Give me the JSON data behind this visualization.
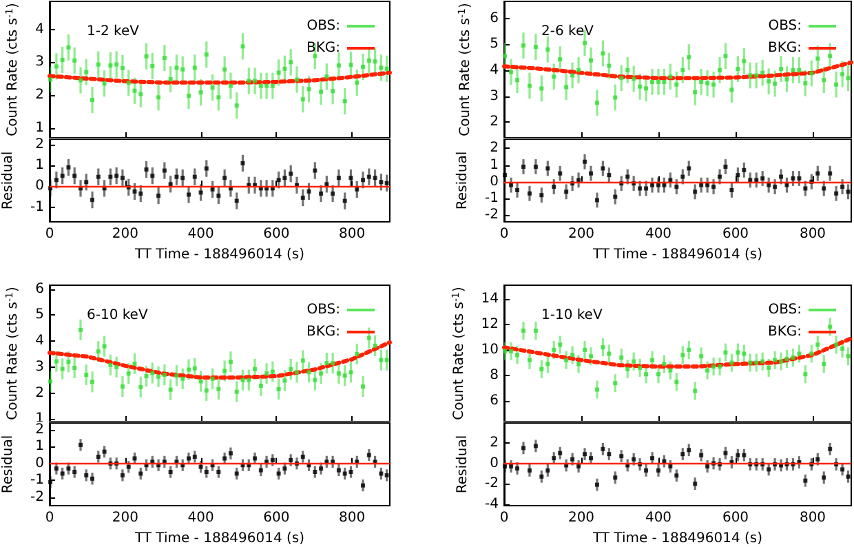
{
  "chart_data": [
    {
      "type": "scatter",
      "title": "1-2 keV",
      "ylabel": "Count Rate (cts s$^{-1}$)",
      "tick_labels": "y",
      "legend": "top right",
      "marker": "square",
      "xlim": [
        0,
        900
      ],
      "xticks": [
        0,
        200,
        400,
        600,
        800
      ],
      "ylim": [
        0.7,
        4.85
      ],
      "yticks": [
        1,
        2,
        3,
        4
      ],
      "x": [
        2,
        18,
        34,
        50,
        66,
        82,
        97,
        113,
        129,
        145,
        161,
        177,
        193,
        209,
        225,
        241,
        256,
        272,
        288,
        304,
        320,
        336,
        352,
        368,
        384,
        400,
        415,
        431,
        447,
        463,
        479,
        495,
        511,
        527,
        543,
        559,
        574,
        590,
        606,
        622,
        638,
        654,
        670,
        686,
        702,
        718,
        733,
        749,
        765,
        781,
        797,
        813,
        829,
        845,
        861,
        877,
        892
      ],
      "series": [
        {
          "name": "OBS:",
          "color": "#33dd33",
          "values": [
            2.47,
            2.87,
            3.07,
            3.45,
            3.05,
            2.45,
            2.7,
            1.85,
            2.93,
            2.35,
            2.9,
            2.93,
            2.82,
            2.37,
            2.13,
            2.03,
            3.18,
            2.88,
            1.93,
            3.13,
            2.48,
            2.83,
            2.78,
            1.98,
            2.83,
            2.08,
            3.23,
            2.23,
            1.93,
            2.78,
            2.28,
            1.68,
            3.48,
            2.43,
            2.43,
            2.28,
            2.28,
            2.28,
            2.68,
            2.8,
            3.0,
            2.47,
            1.87,
            2.18,
            3.19,
            2.1,
            2.56,
            2.12,
            2.9,
            1.81,
            2.92,
            2.38,
            2.86,
            3.05,
            3.02,
            2.83,
            2.8
          ],
          "errors": [
            0.4,
            0.4,
            0.4,
            0.4,
            0.4,
            0.4,
            0.4,
            0.4,
            0.4,
            0.4,
            0.4,
            0.4,
            0.4,
            0.4,
            0.4,
            0.4,
            0.4,
            0.4,
            0.4,
            0.4,
            0.4,
            0.4,
            0.4,
            0.4,
            0.4,
            0.4,
            0.4,
            0.4,
            0.4,
            0.4,
            0.4,
            0.4,
            0.4,
            0.4,
            0.4,
            0.4,
            0.4,
            0.4,
            0.4,
            0.4,
            0.4,
            0.4,
            0.4,
            0.4,
            0.4,
            0.4,
            0.4,
            0.4,
            0.4,
            0.4,
            0.4,
            0.4,
            0.4,
            0.4,
            0.4,
            0.4,
            0.4
          ]
        },
        {
          "name": "BKG:",
          "type": "line",
          "color": "#ff2200",
          "line_style": "dotted",
          "marker": "none",
          "x": [
            0,
            100,
            200,
            300,
            400,
            500,
            600,
            700,
            800,
            900
          ],
          "values": [
            2.58,
            2.5,
            2.42,
            2.38,
            2.38,
            2.38,
            2.4,
            2.45,
            2.55,
            2.68
          ]
        }
      ]
    },
    {
      "type": "scatter",
      "xlabel": "TT Time - 188496014 (s)",
      "ylabel": "Residual",
      "marker": "square",
      "xlim": [
        0,
        900
      ],
      "xticks": [
        0,
        200,
        400,
        600,
        800
      ],
      "ylim": [
        -1.7,
        2.25
      ],
      "yticks": [
        -1,
        0,
        1,
        2
      ],
      "ref_lines": [
        {
          "axis": "y",
          "value": 0,
          "color": "#ff2200"
        }
      ],
      "x": [
        2,
        18,
        34,
        50,
        66,
        82,
        97,
        113,
        129,
        145,
        161,
        177,
        193,
        209,
        225,
        241,
        256,
        272,
        288,
        304,
        320,
        336,
        352,
        368,
        384,
        400,
        415,
        431,
        447,
        463,
        479,
        495,
        511,
        527,
        543,
        559,
        574,
        590,
        606,
        622,
        638,
        654,
        670,
        686,
        702,
        718,
        733,
        749,
        765,
        781,
        797,
        813,
        829,
        845,
        861,
        877,
        892
      ],
      "series": [
        {
          "color": "#000000",
          "values": [
            -0.1,
            0.3,
            0.5,
            0.9,
            0.5,
            -0.1,
            0.2,
            -0.65,
            0.45,
            -0.1,
            0.45,
            0.5,
            0.4,
            -0.05,
            -0.25,
            -0.35,
            0.8,
            0.5,
            -0.45,
            0.75,
            0.1,
            0.45,
            0.4,
            -0.4,
            0.45,
            -0.3,
            0.85,
            -0.15,
            -0.45,
            0.4,
            -0.1,
            -0.7,
            1.1,
            0.05,
            0.05,
            -0.1,
            -0.1,
            -0.1,
            0.3,
            0.4,
            0.6,
            0.05,
            -0.55,
            -0.25,
            0.75,
            -0.35,
            0.1,
            -0.35,
            0.4,
            -0.7,
            0.4,
            -0.15,
            0.3,
            0.45,
            0.4,
            0.2,
            0.15
          ],
          "errors": [
            0.4,
            0.4,
            0.4,
            0.4,
            0.4,
            0.4,
            0.4,
            0.4,
            0.4,
            0.4,
            0.4,
            0.4,
            0.4,
            0.4,
            0.4,
            0.4,
            0.4,
            0.4,
            0.4,
            0.4,
            0.4,
            0.4,
            0.4,
            0.4,
            0.4,
            0.4,
            0.4,
            0.4,
            0.4,
            0.4,
            0.4,
            0.4,
            0.4,
            0.4,
            0.4,
            0.4,
            0.4,
            0.4,
            0.4,
            0.4,
            0.4,
            0.4,
            0.4,
            0.4,
            0.4,
            0.4,
            0.4,
            0.4,
            0.4,
            0.4,
            0.4,
            0.4,
            0.4,
            0.4,
            0.4,
            0.4,
            0.4
          ]
        }
      ]
    },
    {
      "type": "scatter",
      "title": "2-6 keV",
      "ylabel": "Count Rate (cts s$^{-1}$)",
      "tick_labels": "y",
      "legend": "top right",
      "marker": "square",
      "xlim": [
        0,
        900
      ],
      "xticks": [
        0,
        200,
        400,
        600,
        800
      ],
      "ylim": [
        1.4,
        6.65
      ],
      "yticks": [
        2,
        3,
        4,
        5,
        6
      ],
      "x": [
        2,
        18,
        34,
        50,
        66,
        82,
        97,
        113,
        129,
        145,
        161,
        177,
        193,
        209,
        225,
        241,
        256,
        272,
        288,
        304,
        320,
        336,
        352,
        368,
        384,
        400,
        415,
        431,
        447,
        463,
        479,
        495,
        511,
        527,
        543,
        559,
        574,
        590,
        606,
        622,
        638,
        654,
        670,
        686,
        702,
        718,
        733,
        749,
        765,
        781,
        797,
        813,
        829,
        845,
        861,
        877,
        892
      ],
      "series": [
        {
          "name": "OBS:",
          "color": "#33dd33",
          "values": [
            4.55,
            3.93,
            3.62,
            4.95,
            3.4,
            4.9,
            3.3,
            4.8,
            3.75,
            4.42,
            3.35,
            3.8,
            4.0,
            5.05,
            4.38,
            2.75,
            4.65,
            4.17,
            2.95,
            3.7,
            4.0,
            3.67,
            3.37,
            3.3,
            3.55,
            3.55,
            3.55,
            3.75,
            3.45,
            4.0,
            4.5,
            3.15,
            3.55,
            3.5,
            3.45,
            4.0,
            4.55,
            3.25,
            4.05,
            4.35,
            3.8,
            3.8,
            3.9,
            3.57,
            3.48,
            4.05,
            3.65,
            4.0,
            4.0,
            3.5,
            3.88,
            4.45,
            3.62,
            4.55,
            3.45,
            3.85,
            3.7
          ],
          "errors": [
            0.5,
            0.5,
            0.5,
            0.5,
            0.5,
            0.5,
            0.5,
            0.5,
            0.5,
            0.5,
            0.5,
            0.5,
            0.5,
            0.5,
            0.5,
            0.5,
            0.5,
            0.5,
            0.5,
            0.5,
            0.5,
            0.5,
            0.5,
            0.5,
            0.5,
            0.5,
            0.5,
            0.5,
            0.5,
            0.5,
            0.5,
            0.5,
            0.5,
            0.5,
            0.5,
            0.5,
            0.5,
            0.5,
            0.5,
            0.5,
            0.5,
            0.5,
            0.5,
            0.5,
            0.5,
            0.5,
            0.5,
            0.5,
            0.5,
            0.5,
            0.5,
            0.5,
            0.5,
            0.5,
            0.5,
            0.5,
            0.5
          ]
        },
        {
          "name": "BKG:",
          "type": "line",
          "color": "#ff2200",
          "line_style": "dotted",
          "marker": "none",
          "x": [
            0,
            100,
            200,
            300,
            400,
            500,
            600,
            700,
            800,
            900
          ],
          "values": [
            4.15,
            4.05,
            3.9,
            3.75,
            3.7,
            3.7,
            3.72,
            3.8,
            3.9,
            4.3
          ]
        }
      ]
    },
    {
      "type": "scatter",
      "xlabel": "TT Time - 188496014 (s)",
      "ylabel": "Residual",
      "marker": "square",
      "xlim": [
        0,
        900
      ],
      "xticks": [
        0,
        200,
        400,
        600,
        800
      ],
      "ylim": [
        -2.4,
        2.55
      ],
      "yticks": [
        -2,
        -1,
        0,
        1,
        2
      ],
      "ref_lines": [
        {
          "axis": "y",
          "value": 0,
          "color": "#ff2200"
        }
      ],
      "x": [
        2,
        18,
        34,
        50,
        66,
        82,
        97,
        113,
        129,
        145,
        161,
        177,
        193,
        209,
        225,
        241,
        256,
        272,
        288,
        304,
        320,
        336,
        352,
        368,
        384,
        400,
        415,
        431,
        447,
        463,
        479,
        495,
        511,
        527,
        543,
        559,
        574,
        590,
        606,
        622,
        638,
        654,
        670,
        686,
        702,
        718,
        733,
        749,
        765,
        781,
        797,
        813,
        829,
        845,
        861,
        877,
        892
      ],
      "series": [
        {
          "color": "#000000",
          "values": [
            0.4,
            -0.2,
            -0.5,
            0.9,
            -0.7,
            0.9,
            -0.8,
            0.8,
            -0.3,
            0.5,
            -0.6,
            -0.1,
            0.1,
            1.2,
            0.5,
            -1.1,
            0.8,
            0.4,
            -0.9,
            -0.1,
            0.3,
            -0.1,
            -0.4,
            -0.4,
            -0.2,
            -0.2,
            -0.2,
            0.1,
            -0.3,
            0.3,
            0.8,
            -0.6,
            -0.2,
            -0.2,
            -0.3,
            0.3,
            0.9,
            -0.5,
            0.4,
            0.7,
            0.1,
            0.1,
            0.2,
            -0.2,
            -0.3,
            0.3,
            -0.2,
            0.2,
            0.2,
            -0.4,
            0,
            0.5,
            -0.4,
            0.5,
            -0.7,
            -0.3,
            -0.6
          ],
          "errors": [
            0.45,
            0.45,
            0.45,
            0.45,
            0.45,
            0.45,
            0.45,
            0.45,
            0.45,
            0.45,
            0.45,
            0.45,
            0.45,
            0.45,
            0.45,
            0.45,
            0.45,
            0.45,
            0.45,
            0.45,
            0.45,
            0.45,
            0.45,
            0.45,
            0.45,
            0.45,
            0.45,
            0.45,
            0.45,
            0.45,
            0.45,
            0.45,
            0.45,
            0.45,
            0.45,
            0.45,
            0.45,
            0.45,
            0.45,
            0.45,
            0.45,
            0.45,
            0.45,
            0.45,
            0.45,
            0.45,
            0.45,
            0.45,
            0.45,
            0.45,
            0.45,
            0.45,
            0.45,
            0.45,
            0.45,
            0.45,
            0.45
          ]
        }
      ]
    },
    {
      "type": "scatter",
      "title": "6-10 keV",
      "ylabel": "Count Rate (cts s$^{-1}$)",
      "tick_labels": "y",
      "legend": "top right",
      "marker": "square",
      "xlim": [
        0,
        900
      ],
      "xticks": [
        0,
        200,
        400,
        600,
        800
      ],
      "ylim": [
        0.9,
        6.15
      ],
      "yticks": [
        1,
        2,
        3,
        4,
        5,
        6
      ],
      "x": [
        2,
        18,
        34,
        50,
        66,
        82,
        97,
        113,
        129,
        145,
        161,
        177,
        193,
        209,
        225,
        241,
        256,
        272,
        288,
        304,
        320,
        336,
        352,
        368,
        384,
        400,
        415,
        431,
        447,
        463,
        479,
        495,
        511,
        527,
        543,
        559,
        574,
        590,
        606,
        622,
        638,
        654,
        670,
        686,
        702,
        718,
        733,
        749,
        765,
        781,
        797,
        813,
        829,
        845,
        861,
        877,
        892
      ],
      "series": [
        {
          "name": "OBS:",
          "color": "#33dd33",
          "values": [
            2.45,
            3.22,
            2.93,
            3.2,
            2.97,
            4.43,
            2.7,
            2.43,
            3.6,
            3.8,
            3.08,
            3.0,
            2.25,
            2.75,
            3.13,
            2.23,
            2.65,
            2.77,
            2.63,
            2.7,
            2.13,
            2.67,
            2.55,
            2.9,
            2.95,
            2.45,
            2.1,
            2.55,
            2.15,
            2.85,
            3.2,
            2.05,
            2.5,
            2.5,
            2.92,
            2.28,
            2.75,
            2.82,
            2.15,
            2.48,
            2.92,
            2.8,
            3.25,
            2.8,
            2.5,
            2.75,
            3.15,
            3.15,
            2.75,
            2.67,
            2.8,
            3.5,
            2.25,
            4.12,
            3.82,
            3.27,
            3.27
          ],
          "errors": [
            0.4,
            0.4,
            0.4,
            0.4,
            0.4,
            0.4,
            0.4,
            0.4,
            0.4,
            0.4,
            0.4,
            0.4,
            0.4,
            0.4,
            0.4,
            0.4,
            0.4,
            0.4,
            0.4,
            0.4,
            0.4,
            0.4,
            0.4,
            0.4,
            0.4,
            0.4,
            0.4,
            0.4,
            0.4,
            0.4,
            0.4,
            0.4,
            0.4,
            0.4,
            0.4,
            0.4,
            0.4,
            0.4,
            0.4,
            0.4,
            0.4,
            0.4,
            0.4,
            0.4,
            0.4,
            0.4,
            0.4,
            0.4,
            0.4,
            0.4,
            0.4,
            0.4,
            0.4,
            0.4,
            0.4,
            0.4,
            0.4
          ]
        },
        {
          "name": "BKG:",
          "type": "line",
          "color": "#ff2200",
          "line_style": "dotted",
          "marker": "none",
          "x": [
            0,
            100,
            200,
            300,
            400,
            500,
            600,
            700,
            800,
            900
          ],
          "values": [
            3.55,
            3.4,
            3.05,
            2.75,
            2.6,
            2.6,
            2.65,
            2.9,
            3.3,
            3.95
          ]
        }
      ]
    },
    {
      "type": "scatter",
      "xlabel": "TT Time - 188496014 (s)",
      "ylabel": "Residual",
      "marker": "square",
      "xlim": [
        0,
        900
      ],
      "xticks": [
        0,
        200,
        400,
        600,
        800
      ],
      "ylim": [
        -2.5,
        2.4
      ],
      "yticks": [
        -2,
        -1,
        0,
        1,
        2
      ],
      "ref_lines": [
        {
          "axis": "y",
          "value": 0,
          "color": "#ff2200"
        }
      ],
      "x": [
        2,
        18,
        34,
        50,
        66,
        82,
        97,
        113,
        129,
        145,
        161,
        177,
        193,
        209,
        225,
        241,
        256,
        272,
        288,
        304,
        320,
        336,
        352,
        368,
        384,
        400,
        415,
        431,
        447,
        463,
        479,
        495,
        511,
        527,
        543,
        559,
        574,
        590,
        606,
        622,
        638,
        654,
        670,
        686,
        702,
        718,
        733,
        749,
        765,
        781,
        797,
        813,
        829,
        845,
        861,
        877,
        892
      ],
      "series": [
        {
          "color": "#000000",
          "values": [
            -1.1,
            -0.3,
            -0.6,
            -0.3,
            -0.5,
            1.1,
            -0.7,
            -0.9,
            0.4,
            0.7,
            0,
            0,
            -0.7,
            -0.2,
            0.3,
            -0.6,
            -0.1,
            0.1,
            -0.1,
            0.1,
            -0.5,
            0.1,
            -0.1,
            0.3,
            0.4,
            -0.2,
            -0.5,
            -0.1,
            -0.5,
            0.3,
            0.6,
            -0.6,
            -0.1,
            -0.1,
            0.3,
            -0.4,
            0.1,
            0.2,
            -0.6,
            -0.3,
            0.2,
            0,
            0.4,
            -0.1,
            -0.5,
            -0.3,
            0.1,
            0.1,
            -0.4,
            -0.6,
            -0.5,
            0.1,
            -1.3,
            0.5,
            0.1,
            -0.6,
            -0.7
          ],
          "errors": [
            0.35,
            0.35,
            0.35,
            0.35,
            0.35,
            0.35,
            0.35,
            0.35,
            0.35,
            0.35,
            0.35,
            0.35,
            0.35,
            0.35,
            0.35,
            0.35,
            0.35,
            0.35,
            0.35,
            0.35,
            0.35,
            0.35,
            0.35,
            0.35,
            0.35,
            0.35,
            0.35,
            0.35,
            0.35,
            0.35,
            0.35,
            0.35,
            0.35,
            0.35,
            0.35,
            0.35,
            0.35,
            0.35,
            0.35,
            0.35,
            0.35,
            0.35,
            0.35,
            0.35,
            0.35,
            0.35,
            0.35,
            0.35,
            0.35,
            0.35,
            0.35,
            0.35,
            0.35,
            0.35,
            0.35,
            0.35,
            0.35
          ]
        }
      ]
    },
    {
      "type": "scatter",
      "title": "1-10 keV",
      "ylabel": "Count Rate (cts s$^{-1}$)",
      "tick_labels": "y",
      "legend": "top right",
      "marker": "square",
      "xlim": [
        0,
        900
      ],
      "xticks": [
        0,
        200,
        400,
        600,
        800
      ],
      "ylim": [
        4.4,
        15.05
      ],
      "yticks": [
        6,
        8,
        10,
        12,
        14
      ],
      "x": [
        2,
        18,
        34,
        50,
        66,
        82,
        97,
        113,
        129,
        145,
        161,
        177,
        193,
        209,
        225,
        241,
        256,
        272,
        288,
        304,
        320,
        336,
        352,
        368,
        384,
        400,
        415,
        431,
        447,
        463,
        479,
        495,
        511,
        527,
        543,
        559,
        574,
        590,
        606,
        622,
        638,
        654,
        670,
        686,
        702,
        718,
        733,
        749,
        765,
        781,
        797,
        813,
        829,
        845,
        861,
        877,
        892
      ],
      "series": [
        {
          "name": "OBS:",
          "color": "#33dd33",
          "values": [
            9.9,
            9.9,
            9.6,
            11.5,
            9.2,
            11.5,
            8.5,
            8.9,
            10.0,
            10.4,
            9.2,
            9.6,
            8.9,
            10.0,
            9.5,
            6.9,
            10.2,
            9.7,
            7.4,
            9.4,
            8.5,
            9.1,
            8.6,
            8.1,
            9.2,
            8.1,
            8.9,
            8.4,
            7.5,
            9.6,
            10.0,
            6.8,
            9.5,
            8.4,
            8.7,
            8.7,
            9.8,
            9.0,
            9.8,
            9.7,
            9.0,
            9.0,
            9.1,
            8.6,
            9.2,
            9.1,
            9.3,
            9.4,
            9.7,
            8.1,
            9.7,
            10.4,
            8.9,
            11.8,
            10.4,
            10.1,
            9.5
          ],
          "errors": [
            0.7,
            0.7,
            0.7,
            0.7,
            0.7,
            0.7,
            0.7,
            0.7,
            0.7,
            0.7,
            0.7,
            0.7,
            0.7,
            0.7,
            0.7,
            0.7,
            0.7,
            0.7,
            0.7,
            0.7,
            0.7,
            0.7,
            0.7,
            0.7,
            0.7,
            0.7,
            0.7,
            0.7,
            0.7,
            0.7,
            0.7,
            0.7,
            0.7,
            0.7,
            0.7,
            0.7,
            0.7,
            0.7,
            0.7,
            0.7,
            0.7,
            0.7,
            0.7,
            0.7,
            0.7,
            0.7,
            0.7,
            0.7,
            0.7,
            0.7,
            0.7,
            0.7,
            0.7,
            0.7,
            0.7,
            0.7,
            0.7
          ]
        },
        {
          "name": "BKG:",
          "type": "line",
          "color": "#ff2200",
          "line_style": "dotted",
          "marker": "none",
          "x": [
            0,
            100,
            200,
            300,
            400,
            500,
            600,
            700,
            800,
            900
          ],
          "values": [
            10.2,
            9.7,
            9.2,
            8.8,
            8.7,
            8.7,
            8.9,
            9.0,
            9.6,
            10.9
          ]
        }
      ]
    },
    {
      "type": "scatter",
      "xlabel": "TT Time - 188496014 (s)",
      "ylabel": "Residual",
      "marker": "square",
      "xlim": [
        0,
        900
      ],
      "xticks": [
        0,
        200,
        400,
        600,
        800
      ],
      "ylim": [
        -4.15,
        3.95
      ],
      "yticks": [
        -4,
        -2,
        0,
        2
      ],
      "ref_lines": [
        {
          "axis": "y",
          "value": 0,
          "color": "#ff2200"
        }
      ],
      "x": [
        2,
        18,
        34,
        50,
        66,
        82,
        97,
        113,
        129,
        145,
        161,
        177,
        193,
        209,
        225,
        241,
        256,
        272,
        288,
        304,
        320,
        336,
        352,
        368,
        384,
        400,
        415,
        431,
        447,
        463,
        479,
        495,
        511,
        527,
        543,
        559,
        574,
        590,
        606,
        622,
        638,
        654,
        670,
        686,
        702,
        718,
        733,
        749,
        765,
        781,
        797,
        813,
        829,
        845,
        861,
        877,
        892
      ],
      "series": [
        {
          "color": "#000000",
          "values": [
            -0.3,
            -0.3,
            -0.5,
            1.5,
            -0.7,
            1.7,
            -1.3,
            -0.7,
            0.5,
            1.0,
            -0.2,
            0.4,
            -0.3,
            0.9,
            0.5,
            -2.1,
            1.4,
            0.9,
            -1.4,
            0.7,
            -0.2,
            0.4,
            -0.1,
            -0.7,
            0.5,
            -0.7,
            0.2,
            -0.3,
            -1.2,
            0.9,
            1.3,
            -2.0,
            0.8,
            -0.3,
            0,
            -0.1,
            1.0,
            0.1,
            0.8,
            0.8,
            -0.1,
            -0.1,
            -0.1,
            -0.6,
            -0.1,
            -0.2,
            -0.1,
            -0.1,
            0.1,
            -1.7,
            -0.1,
            0.4,
            -1.4,
            1.4,
            -0.1,
            -0.6,
            -1.3
          ],
          "errors": [
            0.6,
            0.6,
            0.6,
            0.6,
            0.6,
            0.6,
            0.6,
            0.6,
            0.6,
            0.6,
            0.6,
            0.6,
            0.6,
            0.6,
            0.6,
            0.6,
            0.6,
            0.6,
            0.6,
            0.6,
            0.6,
            0.6,
            0.6,
            0.6,
            0.6,
            0.6,
            0.6,
            0.6,
            0.6,
            0.6,
            0.6,
            0.6,
            0.6,
            0.6,
            0.6,
            0.6,
            0.6,
            0.6,
            0.6,
            0.6,
            0.6,
            0.6,
            0.6,
            0.6,
            0.6,
            0.6,
            0.6,
            0.6,
            0.6,
            0.6,
            0.6,
            0.6,
            0.6,
            0.6,
            0.6,
            0.6,
            0.6
          ]
        }
      ]
    }
  ]
}
